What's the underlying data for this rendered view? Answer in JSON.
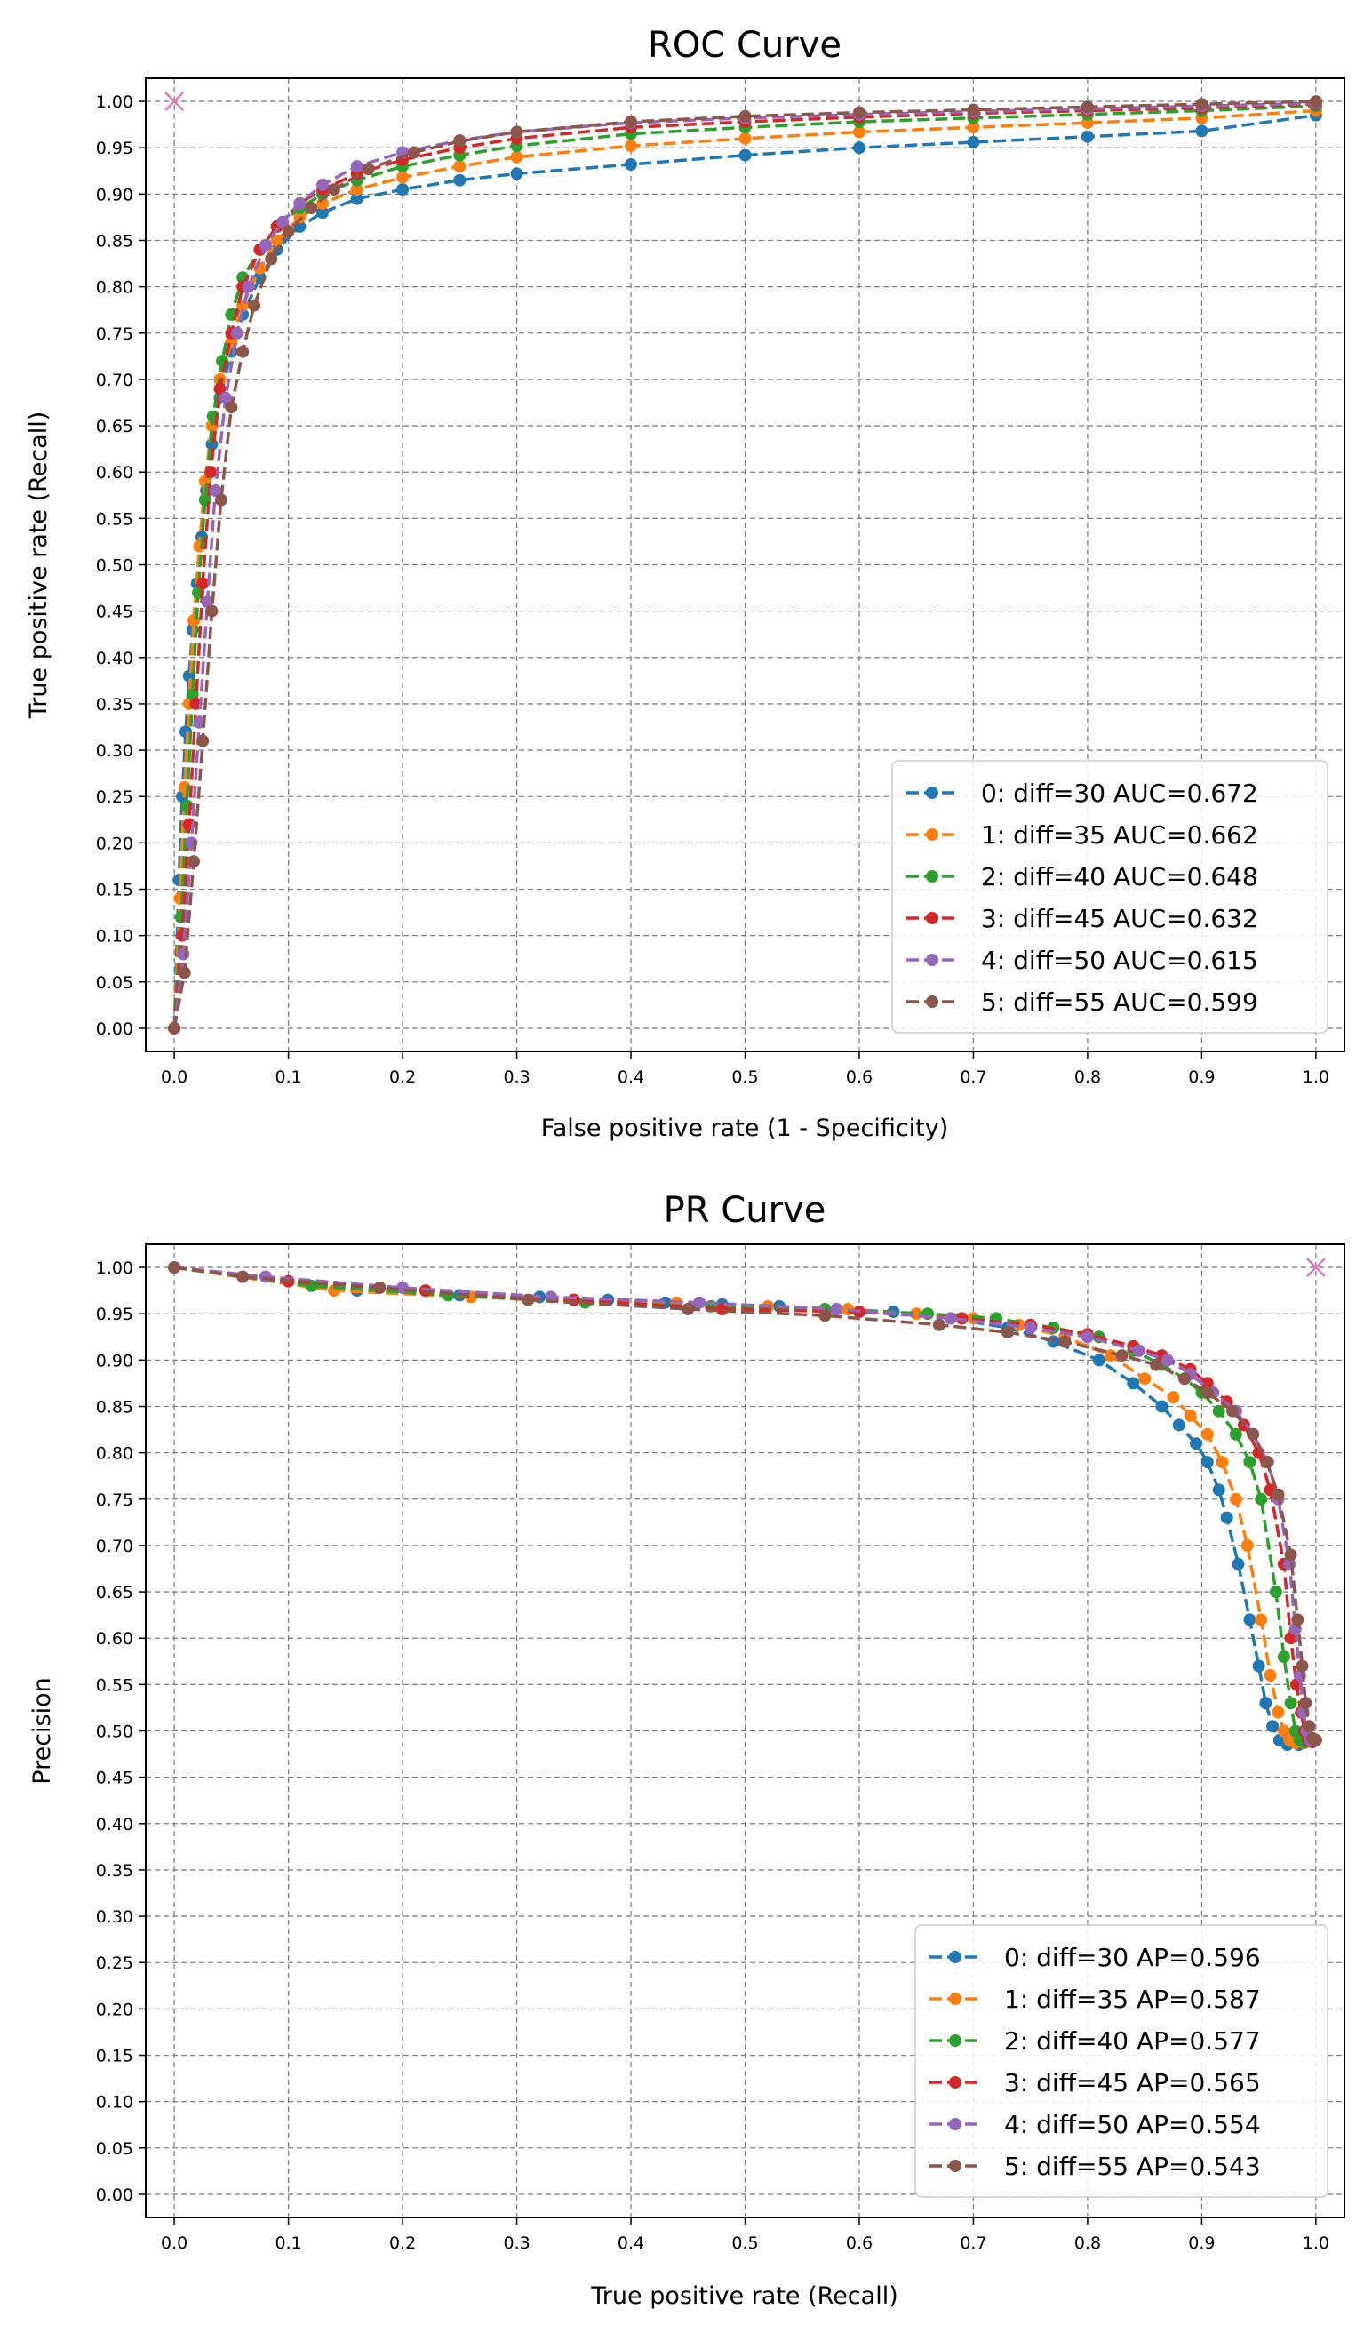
{
  "chart_data": [
    {
      "type": "line",
      "title": "ROC Curve",
      "xlabel": "False positive rate (1 - Specificity)",
      "ylabel": "True positive rate (Recall)",
      "xlim": [
        -0.025,
        1.025
      ],
      "ylim": [
        -0.025,
        1.025
      ],
      "xticks": [
        "0.0",
        "0.1",
        "0.2",
        "0.3",
        "0.4",
        "0.5",
        "0.6",
        "0.7",
        "0.8",
        "0.9",
        "1.0"
      ],
      "yticks": [
        "0.00",
        "0.05",
        "0.10",
        "0.15",
        "0.20",
        "0.25",
        "0.30",
        "0.35",
        "0.40",
        "0.45",
        "0.50",
        "0.55",
        "0.60",
        "0.65",
        "0.70",
        "0.75",
        "0.80",
        "0.85",
        "0.90",
        "0.95",
        "1.00"
      ],
      "grid": true,
      "legend_position": "bottom-right",
      "ideal_point": {
        "x": 0,
        "y": 1,
        "marker": "x",
        "color": "#e377c2"
      },
      "series": [
        {
          "label": "0: diff=30 AUC=0.672",
          "color": "#1f77b4",
          "x": [
            0,
            0.004,
            0.007,
            0.01,
            0.013,
            0.016,
            0.02,
            0.024,
            0.028,
            0.033,
            0.04,
            0.05,
            0.06,
            0.075,
            0.09,
            0.11,
            0.13,
            0.16,
            0.2,
            0.25,
            0.3,
            0.4,
            0.5,
            0.6,
            0.7,
            0.8,
            0.9,
            1.0
          ],
          "y": [
            0,
            0.16,
            0.25,
            0.32,
            0.38,
            0.43,
            0.48,
            0.53,
            0.58,
            0.63,
            0.68,
            0.73,
            0.77,
            0.81,
            0.84,
            0.865,
            0.88,
            0.895,
            0.905,
            0.915,
            0.922,
            0.932,
            0.942,
            0.95,
            0.956,
            0.962,
            0.968,
            0.985
          ]
        },
        {
          "label": "1: diff=35 AUC=0.662",
          "color": "#ff7f0e",
          "x": [
            0,
            0.005,
            0.009,
            0.013,
            0.017,
            0.022,
            0.027,
            0.033,
            0.04,
            0.05,
            0.06,
            0.075,
            0.09,
            0.11,
            0.13,
            0.16,
            0.2,
            0.25,
            0.3,
            0.4,
            0.5,
            0.6,
            0.7,
            0.8,
            0.9,
            1.0
          ],
          "y": [
            0,
            0.14,
            0.26,
            0.35,
            0.44,
            0.52,
            0.59,
            0.65,
            0.7,
            0.74,
            0.78,
            0.82,
            0.85,
            0.875,
            0.89,
            0.905,
            0.918,
            0.93,
            0.94,
            0.952,
            0.96,
            0.967,
            0.972,
            0.977,
            0.982,
            0.99
          ]
        },
        {
          "label": "2: diff=40 AUC=0.648",
          "color": "#2ca02c",
          "x": [
            0,
            0.006,
            0.011,
            0.016,
            0.021,
            0.027,
            0.034,
            0.042,
            0.05,
            0.06,
            0.075,
            0.09,
            0.11,
            0.13,
            0.16,
            0.2,
            0.25,
            0.3,
            0.4,
            0.5,
            0.6,
            0.7,
            0.8,
            0.9,
            1.0
          ],
          "y": [
            0,
            0.12,
            0.24,
            0.36,
            0.47,
            0.57,
            0.66,
            0.72,
            0.77,
            0.81,
            0.84,
            0.865,
            0.885,
            0.9,
            0.915,
            0.93,
            0.942,
            0.952,
            0.965,
            0.972,
            0.978,
            0.982,
            0.986,
            0.99,
            0.995
          ]
        },
        {
          "label": "3: diff=45 AUC=0.632",
          "color": "#d62728",
          "x": [
            0,
            0.007,
            0.013,
            0.019,
            0.025,
            0.032,
            0.04,
            0.05,
            0.06,
            0.075,
            0.09,
            0.11,
            0.13,
            0.16,
            0.2,
            0.25,
            0.3,
            0.4,
            0.5,
            0.6,
            0.7,
            0.8,
            0.9,
            1.0
          ],
          "y": [
            0,
            0.1,
            0.22,
            0.35,
            0.48,
            0.6,
            0.69,
            0.75,
            0.8,
            0.84,
            0.865,
            0.89,
            0.905,
            0.922,
            0.937,
            0.95,
            0.96,
            0.972,
            0.978,
            0.983,
            0.987,
            0.99,
            0.993,
            0.997
          ]
        },
        {
          "label": "4: diff=50 AUC=0.615",
          "color": "#9467bd",
          "x": [
            0,
            0.008,
            0.015,
            0.022,
            0.029,
            0.036,
            0.045,
            0.055,
            0.065,
            0.08,
            0.095,
            0.11,
            0.13,
            0.16,
            0.2,
            0.25,
            0.3,
            0.4,
            0.5,
            0.6,
            0.7,
            0.8,
            0.9,
            1.0
          ],
          "y": [
            0,
            0.08,
            0.2,
            0.33,
            0.46,
            0.58,
            0.68,
            0.75,
            0.8,
            0.845,
            0.87,
            0.89,
            0.91,
            0.93,
            0.945,
            0.958,
            0.967,
            0.977,
            0.982,
            0.986,
            0.989,
            0.992,
            0.995,
            0.998
          ]
        },
        {
          "label": "5: diff=55 AUC=0.599",
          "color": "#8c564b",
          "x": [
            0,
            0.009,
            0.017,
            0.025,
            0.033,
            0.041,
            0.05,
            0.06,
            0.07,
            0.085,
            0.1,
            0.12,
            0.14,
            0.17,
            0.21,
            0.25,
            0.3,
            0.4,
            0.5,
            0.6,
            0.7,
            0.8,
            0.9,
            1.0
          ],
          "y": [
            0,
            0.06,
            0.18,
            0.31,
            0.45,
            0.57,
            0.67,
            0.73,
            0.78,
            0.83,
            0.86,
            0.885,
            0.905,
            0.927,
            0.945,
            0.957,
            0.967,
            0.978,
            0.984,
            0.988,
            0.991,
            0.994,
            0.997,
            1.0
          ]
        }
      ]
    },
    {
      "type": "line",
      "title": "PR Curve",
      "xlabel": "True positive rate (Recall)",
      "ylabel": "Precision",
      "xlim": [
        -0.025,
        1.025
      ],
      "ylim": [
        -0.025,
        1.025
      ],
      "xticks": [
        "0.0",
        "0.1",
        "0.2",
        "0.3",
        "0.4",
        "0.5",
        "0.6",
        "0.7",
        "0.8",
        "0.9",
        "1.0"
      ],
      "yticks": [
        "0.00",
        "0.05",
        "0.10",
        "0.15",
        "0.20",
        "0.25",
        "0.30",
        "0.35",
        "0.40",
        "0.45",
        "0.50",
        "0.55",
        "0.60",
        "0.65",
        "0.70",
        "0.75",
        "0.80",
        "0.85",
        "0.90",
        "0.95",
        "1.00"
      ],
      "grid": true,
      "legend_position": "bottom-right",
      "ideal_point": {
        "x": 1,
        "y": 1,
        "marker": "x",
        "color": "#e377c2"
      },
      "series": [
        {
          "label": "0: diff=30 AP=0.596",
          "color": "#1f77b4",
          "x": [
            0,
            0.16,
            0.25,
            0.32,
            0.38,
            0.43,
            0.48,
            0.53,
            0.58,
            0.63,
            0.68,
            0.73,
            0.77,
            0.81,
            0.84,
            0.865,
            0.88,
            0.895,
            0.905,
            0.915,
            0.922,
            0.932,
            0.942,
            0.95,
            0.956,
            0.962,
            0.968,
            0.975,
            0.985
          ],
          "y": [
            1.0,
            0.975,
            0.97,
            0.968,
            0.965,
            0.962,
            0.96,
            0.958,
            0.955,
            0.952,
            0.945,
            0.935,
            0.92,
            0.9,
            0.875,
            0.85,
            0.83,
            0.81,
            0.79,
            0.76,
            0.73,
            0.68,
            0.62,
            0.57,
            0.53,
            0.505,
            0.49,
            0.485,
            0.485
          ]
        },
        {
          "label": "1: diff=35 AP=0.587",
          "color": "#ff7f0e",
          "x": [
            0,
            0.14,
            0.26,
            0.35,
            0.44,
            0.52,
            0.59,
            0.65,
            0.7,
            0.74,
            0.78,
            0.82,
            0.85,
            0.875,
            0.89,
            0.905,
            0.918,
            0.93,
            0.94,
            0.952,
            0.96,
            0.967,
            0.972,
            0.977,
            0.982,
            0.99
          ],
          "y": [
            1.0,
            0.975,
            0.968,
            0.965,
            0.962,
            0.958,
            0.955,
            0.95,
            0.945,
            0.938,
            0.925,
            0.905,
            0.88,
            0.86,
            0.84,
            0.82,
            0.79,
            0.75,
            0.7,
            0.62,
            0.56,
            0.52,
            0.5,
            0.49,
            0.487,
            0.487
          ]
        },
        {
          "label": "2: diff=40 AP=0.577",
          "color": "#2ca02c",
          "x": [
            0,
            0.12,
            0.24,
            0.36,
            0.47,
            0.57,
            0.66,
            0.72,
            0.77,
            0.81,
            0.84,
            0.865,
            0.885,
            0.9,
            0.915,
            0.93,
            0.942,
            0.952,
            0.965,
            0.972,
            0.978,
            0.982,
            0.986,
            0.99
          ],
          "y": [
            1.0,
            0.98,
            0.97,
            0.962,
            0.958,
            0.955,
            0.95,
            0.945,
            0.935,
            0.925,
            0.91,
            0.895,
            0.88,
            0.865,
            0.845,
            0.82,
            0.79,
            0.75,
            0.65,
            0.58,
            0.53,
            0.5,
            0.49,
            0.488
          ]
        },
        {
          "label": "3: diff=45 AP=0.565",
          "color": "#d62728",
          "x": [
            0,
            0.1,
            0.22,
            0.35,
            0.48,
            0.6,
            0.69,
            0.75,
            0.8,
            0.84,
            0.865,
            0.89,
            0.905,
            0.922,
            0.937,
            0.95,
            0.96,
            0.972,
            0.978,
            0.983,
            0.987,
            0.99,
            0.993,
            0.997
          ],
          "y": [
            1.0,
            0.985,
            0.975,
            0.965,
            0.955,
            0.952,
            0.945,
            0.938,
            0.928,
            0.915,
            0.905,
            0.89,
            0.875,
            0.855,
            0.83,
            0.8,
            0.76,
            0.68,
            0.6,
            0.55,
            0.52,
            0.5,
            0.49,
            0.488
          ]
        },
        {
          "label": "4: diff=50 AP=0.554",
          "color": "#9467bd",
          "x": [
            0,
            0.08,
            0.2,
            0.33,
            0.46,
            0.58,
            0.68,
            0.75,
            0.8,
            0.845,
            0.87,
            0.89,
            0.91,
            0.93,
            0.945,
            0.958,
            0.967,
            0.977,
            0.982,
            0.986,
            0.989,
            0.992,
            0.995,
            0.998
          ],
          "y": [
            1.0,
            0.99,
            0.978,
            0.968,
            0.962,
            0.955,
            0.945,
            0.935,
            0.925,
            0.91,
            0.9,
            0.885,
            0.865,
            0.845,
            0.82,
            0.79,
            0.75,
            0.68,
            0.61,
            0.56,
            0.52,
            0.5,
            0.49,
            0.49
          ]
        },
        {
          "label": "5: diff=55 AP=0.543",
          "color": "#8c564b",
          "x": [
            0,
            0.06,
            0.18,
            0.31,
            0.45,
            0.57,
            0.67,
            0.73,
            0.78,
            0.83,
            0.86,
            0.885,
            0.905,
            0.927,
            0.945,
            0.957,
            0.967,
            0.978,
            0.984,
            0.988,
            0.991,
            0.994,
            0.997,
            1.0
          ],
          "y": [
            1.0,
            0.99,
            0.978,
            0.965,
            0.955,
            0.948,
            0.938,
            0.93,
            0.92,
            0.905,
            0.895,
            0.88,
            0.865,
            0.845,
            0.82,
            0.79,
            0.755,
            0.69,
            0.62,
            0.57,
            0.53,
            0.505,
            0.492,
            0.49
          ]
        }
      ]
    }
  ]
}
